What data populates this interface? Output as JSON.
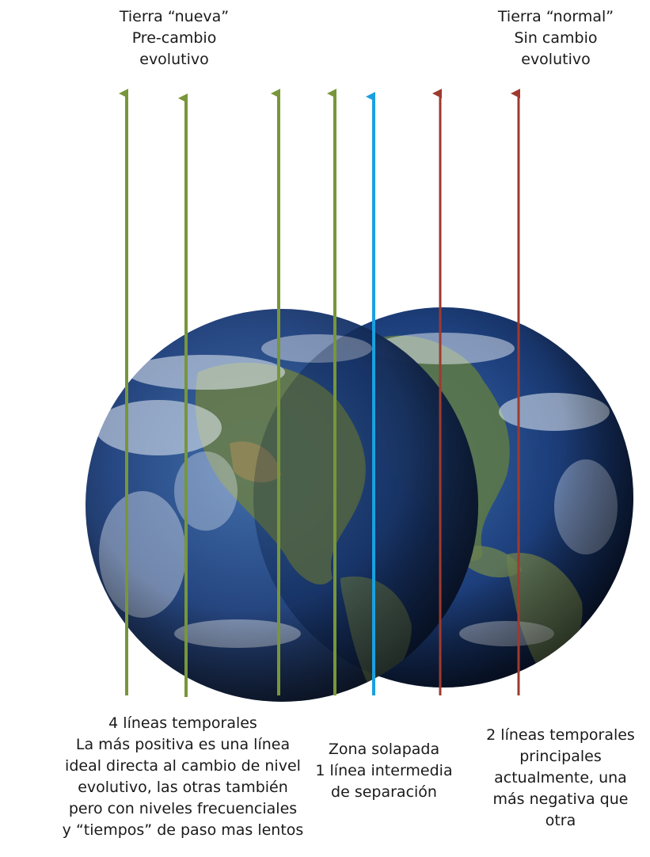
{
  "labels": {
    "new_earth": [
      "Tierra “nueva”",
      "Pre-cambio",
      "evolutivo"
    ],
    "normal_earth": [
      "Tierra “normal”",
      "Sin cambio",
      "evolutivo"
    ],
    "left_note": [
      "4 líneas temporales",
      "La más positiva es una línea",
      "ideal directa al cambio de nivel",
      "evolutivo, las otras también",
      "pero con niveles frecuenciales",
      "y “tiempos” de paso mas lentos"
    ],
    "middle_note": [
      "Zona solapada",
      "1 línea intermedia",
      "de separación"
    ],
    "right_note": [
      "2 líneas temporales",
      "principales",
      "actualmente, una",
      "más negativa que",
      "otra"
    ]
  },
  "colors": {
    "green_line": "#78963a",
    "blue_line": "#1aa0e0",
    "red_line": "#9e3a2e",
    "ocean": "#1c3d78",
    "land": "#5f7a45",
    "cloud": "#e8eef5"
  },
  "timelines": [
    {
      "group": "new",
      "color": "green"
    },
    {
      "group": "new",
      "color": "green"
    },
    {
      "group": "new",
      "color": "green"
    },
    {
      "group": "new",
      "color": "green"
    },
    {
      "group": "overlap",
      "color": "blue"
    },
    {
      "group": "normal",
      "color": "red"
    },
    {
      "group": "normal",
      "color": "red"
    }
  ]
}
